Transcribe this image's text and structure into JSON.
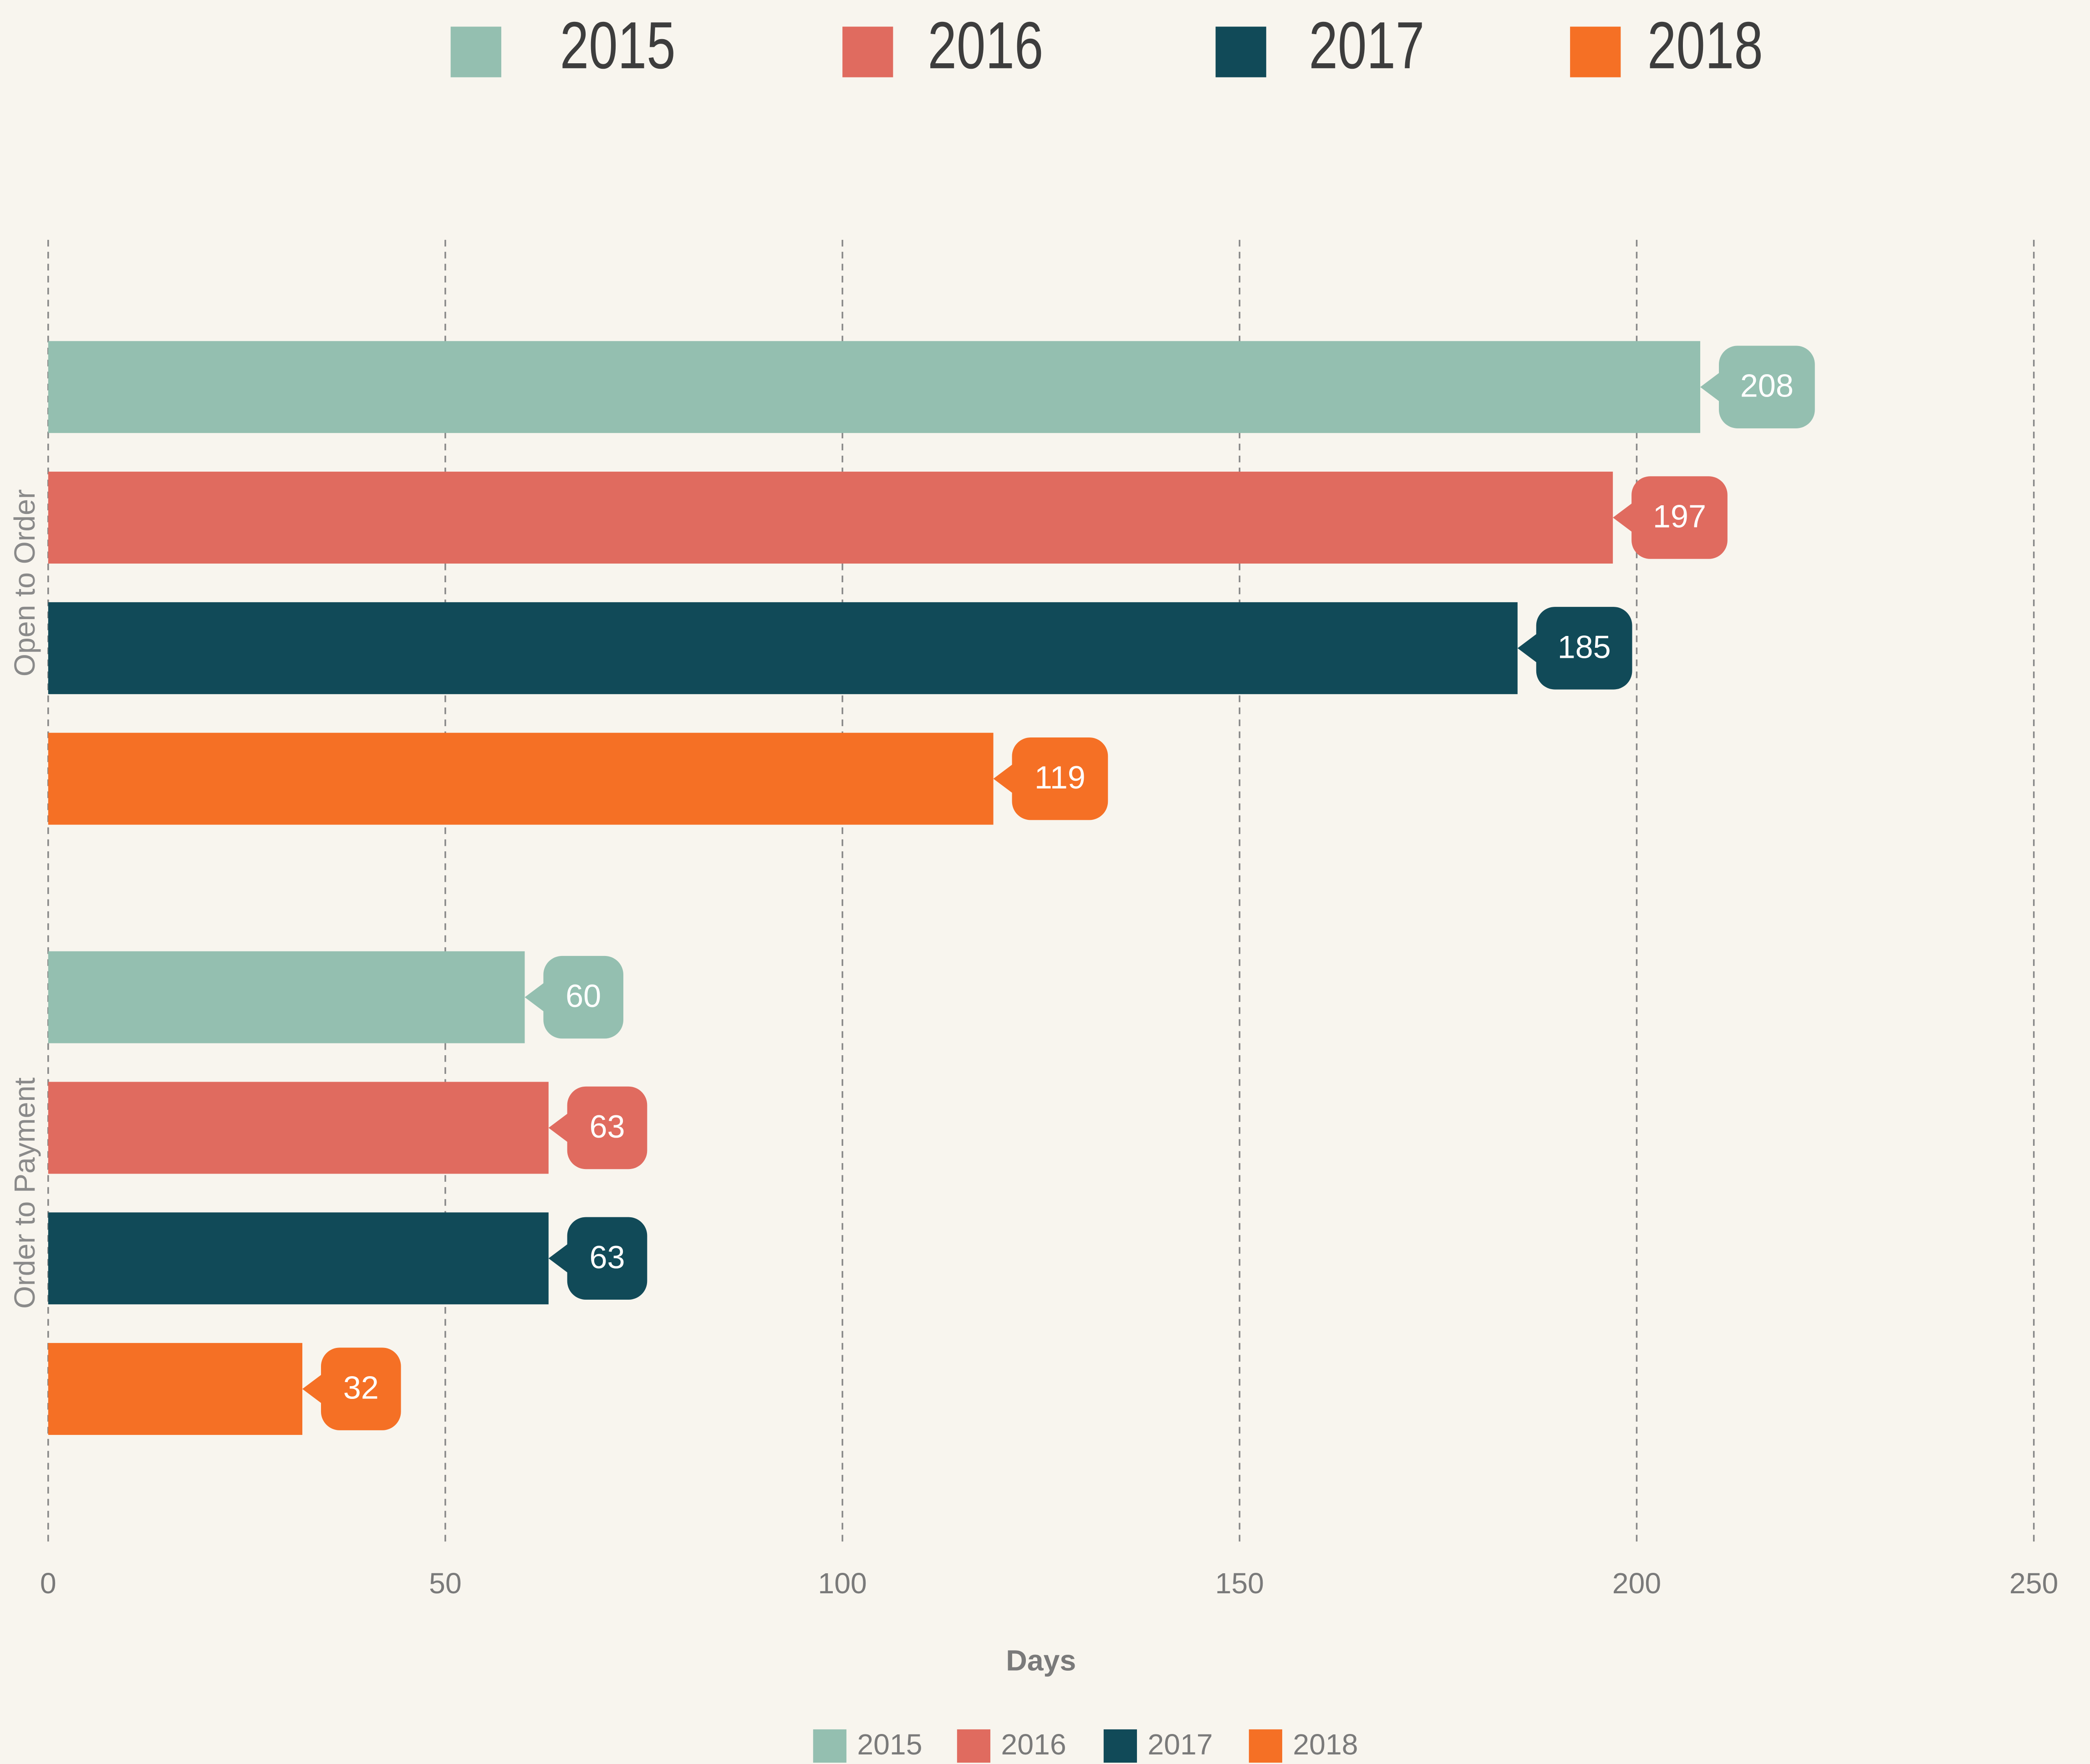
{
  "chart_data": {
    "type": "barh",
    "categories": [
      "Open to Order",
      "Order to Payment"
    ],
    "series": [
      {
        "name": "2015",
        "color": "#94bfb0",
        "values": [
          208,
          60
        ]
      },
      {
        "name": "2016",
        "color": "#e06b5f",
        "values": [
          197,
          63
        ]
      },
      {
        "name": "2017",
        "color": "#114a58",
        "values": [
          185,
          63
        ]
      },
      {
        "name": "2018",
        "color": "#f57025",
        "values": [
          119,
          32
        ]
      }
    ],
    "xlabel": "Days",
    "xlim": [
      0,
      250
    ],
    "xticks": [
      0,
      50,
      100,
      150,
      200,
      250
    ],
    "grid": true,
    "legend": "top"
  }
}
